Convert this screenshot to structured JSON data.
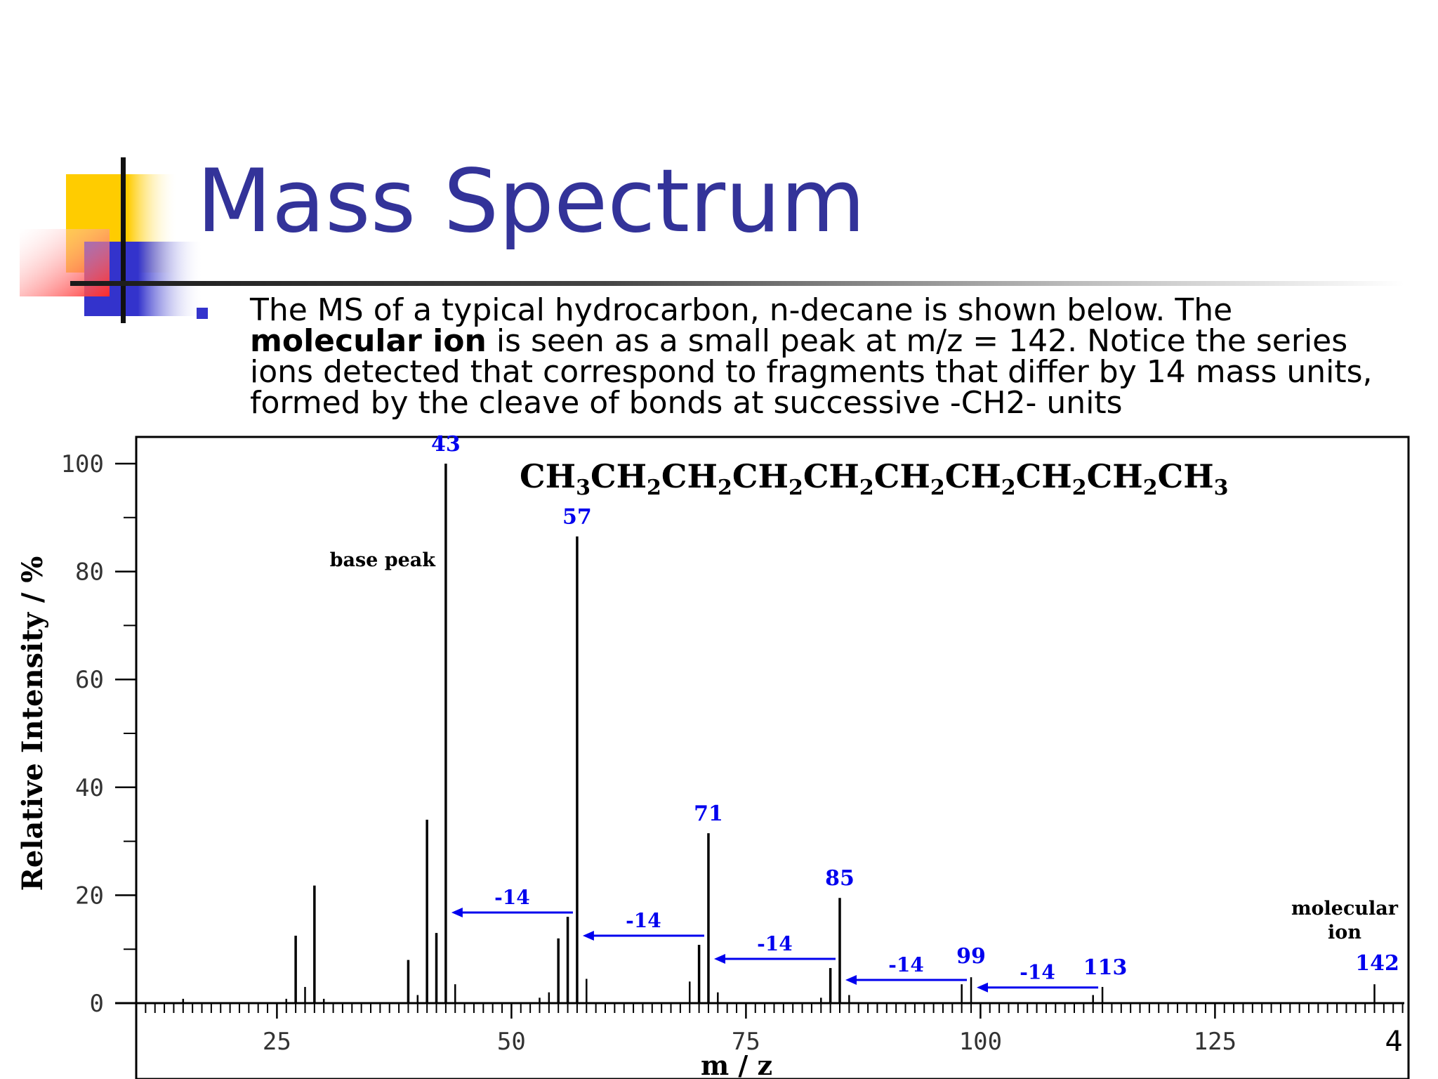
{
  "slide": {
    "title": "Mass Spectrum",
    "bullet": {
      "before": "The MS of a typical hydrocarbon, n-decane is shown below. The ",
      "bold": "molecular ion",
      "after": " is seen as a small peak at m/z = 142.  Notice the series ions detected that correspond to fragments that differ by 14 mass units, formed by the cleave of bonds at successive -CH2- units"
    },
    "page_number": "4"
  },
  "colors": {
    "title": "#333399",
    "accent_blue": "#3333cc",
    "accent_yellow": "#ffcc00",
    "accent_red": "#ff3333",
    "label_blue": "#0000ee"
  },
  "chart_data": {
    "type": "bar",
    "xlabel": "m / z",
    "ylabel": "Relative Intensity / %",
    "xlim": [
      10,
      146
    ],
    "ylim": [
      0,
      100
    ],
    "x_ticks": [
      "25",
      "50",
      "75",
      "100",
      "125"
    ],
    "y_ticks": [
      "0",
      "20",
      "40",
      "60",
      "80",
      "100"
    ],
    "formula": {
      "parts": [
        "CH",
        "3",
        "CH",
        "2",
        "CH",
        "2",
        "CH",
        "2",
        "CH",
        "2",
        "CH",
        "2",
        "CH",
        "2",
        "CH",
        "2",
        "CH",
        "2",
        "CH",
        "3"
      ]
    },
    "peaks": [
      {
        "x": 15,
        "y": 0.8
      },
      {
        "x": 26,
        "y": 0.8
      },
      {
        "x": 27,
        "y": 12.5
      },
      {
        "x": 28,
        "y": 3
      },
      {
        "x": 29,
        "y": 21.8
      },
      {
        "x": 30,
        "y": 0.8
      },
      {
        "x": 39,
        "y": 8
      },
      {
        "x": 40,
        "y": 1.5
      },
      {
        "x": 41,
        "y": 34
      },
      {
        "x": 42,
        "y": 13
      },
      {
        "x": 43,
        "y": 100
      },
      {
        "x": 44,
        "y": 3.5
      },
      {
        "x": 53,
        "y": 1
      },
      {
        "x": 54,
        "y": 2
      },
      {
        "x": 55,
        "y": 12
      },
      {
        "x": 56,
        "y": 16
      },
      {
        "x": 57,
        "y": 86.5
      },
      {
        "x": 58,
        "y": 4.5
      },
      {
        "x": 69,
        "y": 4
      },
      {
        "x": 70,
        "y": 10.8
      },
      {
        "x": 71,
        "y": 31.5
      },
      {
        "x": 72,
        "y": 2
      },
      {
        "x": 83,
        "y": 1
      },
      {
        "x": 84,
        "y": 6.5
      },
      {
        "x": 85,
        "y": 19.5
      },
      {
        "x": 86,
        "y": 1.5
      },
      {
        "x": 98,
        "y": 3.5
      },
      {
        "x": 99,
        "y": 4.8
      },
      {
        "x": 112,
        "y": 1.5
      },
      {
        "x": 113,
        "y": 3
      },
      {
        "x": 142,
        "y": 3.5
      }
    ],
    "peak_labels": [
      {
        "x": 43,
        "text": "43"
      },
      {
        "x": 57,
        "text": "57"
      },
      {
        "x": 71,
        "text": "71"
      },
      {
        "x": 85,
        "text": "85"
      },
      {
        "x": 99,
        "text": "99"
      },
      {
        "x": 113,
        "text": "113"
      },
      {
        "x": 142,
        "text": "142"
      }
    ],
    "shift_arrows": [
      {
        "from": 57,
        "to": 43,
        "y": 16.8,
        "text": "-14"
      },
      {
        "from": 71,
        "to": 57,
        "y": 12.5,
        "text": "-14"
      },
      {
        "from": 85,
        "to": 71,
        "y": 8.2,
        "text": "-14"
      },
      {
        "from": 99,
        "to": 85,
        "y": 4.3,
        "text": "-14"
      },
      {
        "from": 113,
        "to": 99,
        "y": 2.9,
        "text": "-14"
      }
    ],
    "annotations": {
      "base_peak": "base peak",
      "molecular_ion_line1": "molecular",
      "molecular_ion_line2": "ion"
    }
  }
}
